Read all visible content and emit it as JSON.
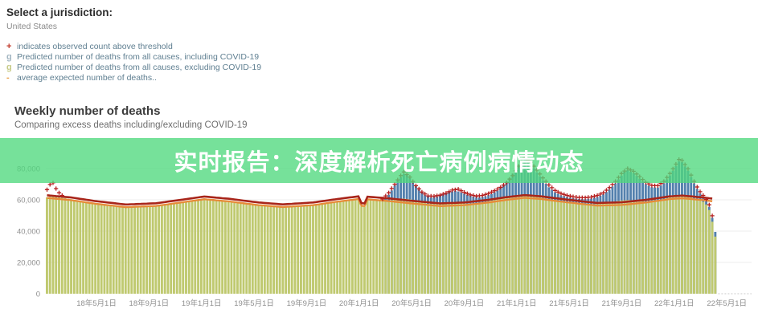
{
  "header": {
    "select_label": "Select a jurisdiction:",
    "jurisdiction": "United States"
  },
  "legend": {
    "items": [
      {
        "marker": "+",
        "color": "#c0392b",
        "text": "indicates observed count above threshold"
      },
      {
        "marker": "g",
        "color": "#a3b6c2",
        "text": "Predicted number of deaths from all causes, including COVID-19"
      },
      {
        "marker": "g",
        "color": "#c6ca87",
        "text": "Predicted number of deaths from all causes, excluding COVID-19"
      },
      {
        "marker": "-",
        "color": "#e9a14c",
        "text": "average expected number of deaths.."
      }
    ]
  },
  "chart_header": {
    "title": "Weekly number of deaths",
    "subtitle": "Comparing excess deaths including/excluding COVID-19"
  },
  "banner": {
    "text": "实时报告：深度解析死亡病例病情动态",
    "background_rgba": "rgba(80,217,126,0.78)",
    "text_color": "#ffffff"
  },
  "chart_data": {
    "type": "bar",
    "title": "Weekly number of deaths",
    "subtitle": "Comparing excess deaths including/excluding COVID-19",
    "grid": true,
    "ylim": [
      0,
      88000
    ],
    "yticks": [
      0,
      20000,
      40000,
      60000,
      80000
    ],
    "ytick_labels": [
      "0",
      "20,000",
      "40,000",
      "60,000",
      "80,000"
    ],
    "xtick_labels": [
      "18年5月1日",
      "18年9月1日",
      "19年1月1日",
      "19年5月1日",
      "19年9月1日",
      "20年1月1日",
      "20年5月1日",
      "20年9月1日",
      "21年1月1日",
      "21年5月1日",
      "21年9月1日",
      "22年1月1日",
      "22年5月1日"
    ],
    "xticks_weeks": [
      16.75,
      34.12,
      51.49,
      68.86,
      86.23,
      103.6,
      120.97,
      138.34,
      155.71,
      173.08,
      190.45,
      207.82,
      225.19
    ],
    "weeks_total": 222,
    "colors": {
      "bar_excluding": "#bfc96f",
      "bar_including": "#5380ad",
      "expected_line": "#e78a38",
      "threshold_line": "#a8251a",
      "observed_marker": "#b51f1f",
      "gridline": "#ececec",
      "axis_text": "#8f8f8f"
    },
    "series": {
      "predicted_excluding_covid": {
        "name": "Predicted number of deaths from all causes, excluding COVID-19",
        "points": [
          [
            0,
            61600
          ],
          [
            2,
            62300
          ],
          [
            4,
            61900
          ],
          [
            8,
            60300
          ],
          [
            12,
            58600
          ],
          [
            16,
            57200
          ],
          [
            20,
            56100
          ],
          [
            26,
            55100
          ],
          [
            30,
            55300
          ],
          [
            34,
            55700
          ],
          [
            38,
            56300
          ],
          [
            42,
            57400
          ],
          [
            46,
            58800
          ],
          [
            50,
            59900
          ],
          [
            52,
            60300
          ],
          [
            54,
            60000
          ],
          [
            58,
            59000
          ],
          [
            62,
            58000
          ],
          [
            66,
            57000
          ],
          [
            70,
            56300
          ],
          [
            74,
            55700
          ],
          [
            78,
            55200
          ],
          [
            82,
            55500
          ],
          [
            86,
            56100
          ],
          [
            90,
            56900
          ],
          [
            94,
            57800
          ],
          [
            98,
            59000
          ],
          [
            101,
            59800
          ],
          [
            103,
            60200
          ],
          [
            104,
            55800
          ],
          [
            105,
            55600
          ],
          [
            106,
            59900
          ],
          [
            108,
            59600
          ],
          [
            110,
            59300
          ],
          [
            112,
            59400
          ],
          [
            114,
            59800
          ],
          [
            116,
            60400
          ],
          [
            118,
            60800
          ],
          [
            120,
            60300
          ],
          [
            122,
            59400
          ],
          [
            124,
            58400
          ],
          [
            126,
            57500
          ],
          [
            128,
            57300
          ],
          [
            130,
            57300
          ],
          [
            132,
            57700
          ],
          [
            134,
            58200
          ],
          [
            136,
            58000
          ],
          [
            138,
            57600
          ],
          [
            140,
            57500
          ],
          [
            142,
            57800
          ],
          [
            144,
            58400
          ],
          [
            146,
            59100
          ],
          [
            148,
            59900
          ],
          [
            150,
            60700
          ],
          [
            152,
            61500
          ],
          [
            154,
            62400
          ],
          [
            156,
            63200
          ],
          [
            158,
            63400
          ],
          [
            160,
            62800
          ],
          [
            162,
            62000
          ],
          [
            164,
            61300
          ],
          [
            166,
            60500
          ],
          [
            168,
            59800
          ],
          [
            170,
            59000
          ],
          [
            172,
            58400
          ],
          [
            174,
            57800
          ],
          [
            176,
            57300
          ],
          [
            178,
            57100
          ],
          [
            180,
            57100
          ],
          [
            182,
            57300
          ],
          [
            184,
            57800
          ],
          [
            186,
            58400
          ],
          [
            188,
            59000
          ],
          [
            190,
            59600
          ],
          [
            192,
            59900
          ],
          [
            194,
            59700
          ],
          [
            196,
            59200
          ],
          [
            198,
            58800
          ],
          [
            200,
            58900
          ],
          [
            202,
            59500
          ],
          [
            204,
            60500
          ],
          [
            206,
            61600
          ],
          [
            208,
            62600
          ],
          [
            210,
            63100
          ],
          [
            212,
            62200
          ],
          [
            214,
            60900
          ],
          [
            215,
            60200
          ],
          [
            216,
            59500
          ],
          [
            217,
            58700
          ],
          [
            218,
            57000
          ],
          [
            219,
            53500
          ],
          [
            220,
            46000
          ],
          [
            221,
            36500
          ]
        ]
      },
      "predicted_including_covid": {
        "name": "Predicted number of deaths from all causes, including COVID-19",
        "start_week": 110,
        "points": [
          [
            110,
            59300
          ],
          [
            112,
            60500
          ],
          [
            114,
            66000
          ],
          [
            116,
            72500
          ],
          [
            118,
            76500
          ],
          [
            119,
            76000
          ],
          [
            121,
            71500
          ],
          [
            123,
            66500
          ],
          [
            125,
            63000
          ],
          [
            127,
            61500
          ],
          [
            129,
            62000
          ],
          [
            131,
            63500
          ],
          [
            133,
            65000
          ],
          [
            135,
            65800
          ],
          [
            137,
            64800
          ],
          [
            139,
            63200
          ],
          [
            141,
            62000
          ],
          [
            143,
            61500
          ],
          [
            145,
            62200
          ],
          [
            147,
            63800
          ],
          [
            149,
            66000
          ],
          [
            151,
            69500
          ],
          [
            153,
            74000
          ],
          [
            155,
            79500
          ],
          [
            157,
            85000
          ],
          [
            158,
            85800
          ],
          [
            160,
            82500
          ],
          [
            162,
            77500
          ],
          [
            164,
            72500
          ],
          [
            166,
            68000
          ],
          [
            168,
            64800
          ],
          [
            170,
            62800
          ],
          [
            172,
            61800
          ],
          [
            174,
            61000
          ],
          [
            176,
            60500
          ],
          [
            178,
            60400
          ],
          [
            180,
            60800
          ],
          [
            182,
            61800
          ],
          [
            184,
            63500
          ],
          [
            186,
            66500
          ],
          [
            188,
            70500
          ],
          [
            190,
            75500
          ],
          [
            191,
            78000
          ],
          [
            192,
            78800
          ],
          [
            194,
            77000
          ],
          [
            196,
            73500
          ],
          [
            198,
            70000
          ],
          [
            200,
            68000
          ],
          [
            202,
            67800
          ],
          [
            204,
            70500
          ],
          [
            206,
            75500
          ],
          [
            208,
            81500
          ],
          [
            209,
            84500
          ],
          [
            210,
            84000
          ],
          [
            212,
            78500
          ],
          [
            214,
            70500
          ],
          [
            215,
            67000
          ],
          [
            216,
            64000
          ],
          [
            217,
            61500
          ],
          [
            218,
            59000
          ],
          [
            219,
            55500
          ],
          [
            220,
            48500
          ],
          [
            221,
            39500
          ]
        ]
      },
      "expected": {
        "name": "average expected number of deaths",
        "points": [
          [
            0,
            61200
          ],
          [
            8,
            59800
          ],
          [
            16,
            57500
          ],
          [
            26,
            55300
          ],
          [
            36,
            56100
          ],
          [
            44,
            58200
          ],
          [
            52,
            60400
          ],
          [
            60,
            59000
          ],
          [
            70,
            56600
          ],
          [
            78,
            55400
          ],
          [
            88,
            56600
          ],
          [
            96,
            58800
          ],
          [
            103,
            60500
          ],
          [
            104,
            56200
          ],
          [
            105,
            56000
          ],
          [
            106,
            60300
          ],
          [
            112,
            59400
          ],
          [
            120,
            57800
          ],
          [
            130,
            56000
          ],
          [
            138,
            56600
          ],
          [
            146,
            58300
          ],
          [
            152,
            60000
          ],
          [
            158,
            61300
          ],
          [
            164,
            60400
          ],
          [
            172,
            58400
          ],
          [
            182,
            56300
          ],
          [
            190,
            56700
          ],
          [
            198,
            58300
          ],
          [
            206,
            60500
          ],
          [
            210,
            61000
          ],
          [
            216,
            60000
          ],
          [
            221,
            58900
          ]
        ]
      },
      "threshold": {
        "name": "upper bound threshold",
        "offset_above_expected": 1700
      },
      "observed_above_threshold": {
        "name": "observed count above threshold",
        "marker": "+",
        "start_cluster": [
          [
            0,
            66500
          ],
          [
            1,
            69800
          ],
          [
            2,
            70800
          ],
          [
            3,
            67200
          ],
          [
            4,
            64500
          ],
          [
            5,
            62800
          ]
        ],
        "from_week": 111,
        "to_week": 220,
        "points": [
          [
            111,
            60500
          ],
          [
            113,
            64500
          ],
          [
            115,
            70000
          ],
          [
            117,
            75500
          ],
          [
            118,
            77800
          ],
          [
            120,
            74500
          ],
          [
            122,
            69000
          ],
          [
            124,
            65000
          ],
          [
            126,
            62500
          ],
          [
            128,
            62300
          ],
          [
            130,
            63000
          ],
          [
            132,
            64300
          ],
          [
            134,
            66200
          ],
          [
            136,
            66800
          ],
          [
            138,
            64800
          ],
          [
            140,
            63200
          ],
          [
            142,
            62400
          ],
          [
            144,
            62800
          ],
          [
            146,
            64000
          ],
          [
            148,
            65800
          ],
          [
            150,
            68000
          ],
          [
            152,
            71000
          ],
          [
            154,
            75500
          ],
          [
            156,
            81500
          ],
          [
            158,
            87000
          ],
          [
            160,
            84000
          ],
          [
            162,
            79000
          ],
          [
            164,
            74000
          ],
          [
            166,
            69500
          ],
          [
            168,
            66000
          ],
          [
            170,
            64000
          ],
          [
            172,
            62800
          ],
          [
            174,
            62000
          ],
          [
            176,
            61500
          ],
          [
            178,
            61400
          ],
          [
            180,
            61800
          ],
          [
            182,
            62800
          ],
          [
            184,
            64500
          ],
          [
            186,
            67800
          ],
          [
            188,
            71800
          ],
          [
            190,
            76800
          ],
          [
            192,
            80000
          ],
          [
            194,
            78200
          ],
          [
            196,
            74800
          ],
          [
            198,
            71200
          ],
          [
            200,
            69200
          ],
          [
            202,
            69000
          ],
          [
            204,
            71800
          ],
          [
            206,
            76800
          ],
          [
            208,
            82800
          ],
          [
            209,
            85800
          ],
          [
            210,
            85200
          ],
          [
            212,
            79800
          ],
          [
            214,
            71800
          ],
          [
            215,
            68200
          ],
          [
            216,
            65200
          ],
          [
            217,
            62800
          ],
          [
            218,
            60300
          ],
          [
            219,
            56800
          ],
          [
            220,
            49800
          ]
        ]
      }
    }
  }
}
